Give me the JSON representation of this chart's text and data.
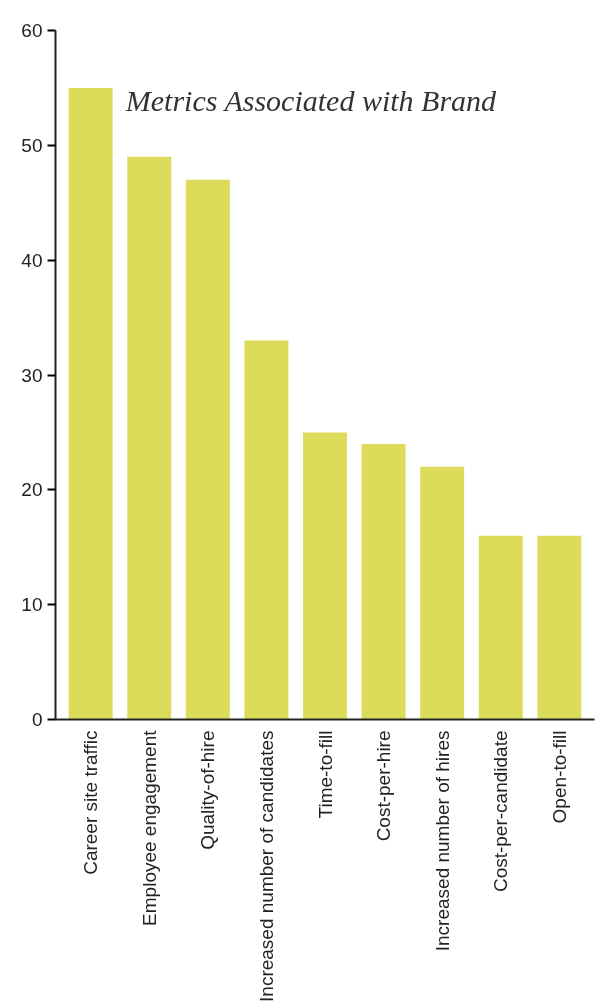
{
  "chart_data": {
    "type": "bar",
    "title": "Metrics Associated with Brand",
    "categories": [
      "Career site traffic",
      "Employee engagement",
      "Quality-of-hire",
      "Increased number of candidates",
      "Time-to-fill",
      "Cost-per-hire",
      "Increased number of hires",
      "Cost-per-candidate",
      "Open-to-fill"
    ],
    "values": [
      55,
      49,
      47,
      33,
      25,
      24,
      22,
      16,
      16
    ],
    "color": "#dcdc5a",
    "ylim": [
      0,
      60
    ],
    "yticks": [
      0,
      10,
      20,
      30,
      40,
      50,
      60
    ],
    "grid": false
  }
}
